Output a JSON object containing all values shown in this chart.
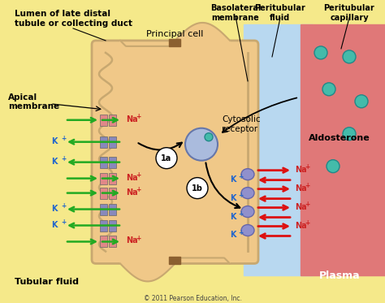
{
  "fig_width": 4.74,
  "fig_height": 3.73,
  "dpi": 100,
  "lumen_bg": "#f5e98a",
  "cell_fill": "#f0c888",
  "cell_border": "#c8a870",
  "peritubular_bg": "#b8d8f0",
  "capillary_bg": "#e07878",
  "arrow_color_green": "#22aa22",
  "arrow_color_red": "#dd1111",
  "ion_na_color": "#cc2222",
  "ion_k_color": "#2266cc",
  "channel_pink": "#e08888",
  "channel_blue": "#8888bb",
  "receptor_color": "#aabbdd",
  "aldo_dot_color": "#44bbaa",
  "junction_color": "#8B6030",
  "footer_text": "© 2011 Pearson Education, Inc.",
  "labels": {
    "lumen_title": "Lumen of late distal\ntubule or collecting duct",
    "basolateral": "Basolateral\nmembrane",
    "peritubular_fluid": "Peritubular\nfluid",
    "peritubular_capillary": "Peritubular\ncapillary",
    "principal_cell": "Principal cell",
    "apical_membrane": "Apical\nmembrane",
    "cytosolic_receptor": "Cytosolic\nreceptor",
    "aldosterone": "Aldosterone",
    "tubular_fluid": "Tubular fluid",
    "plasma": "Plasma"
  }
}
